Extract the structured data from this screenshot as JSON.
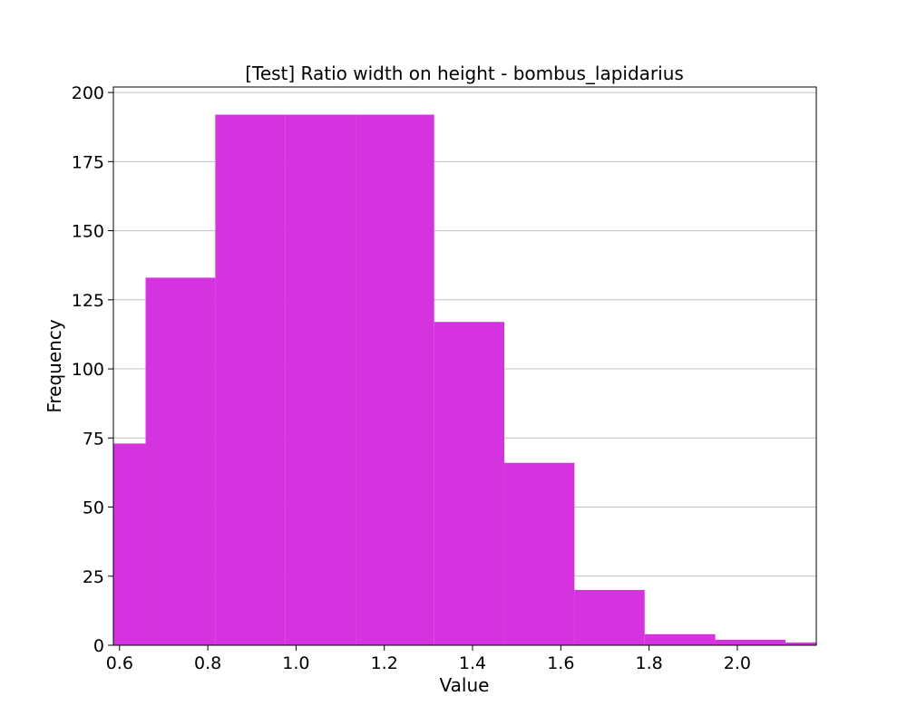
{
  "chart_data": {
    "type": "bar",
    "title": "[Test] Ratio width on height - bombus_lapidarius",
    "xlabel": "Value",
    "ylabel": "Frequency",
    "bins": [
      {
        "x0": 0.5,
        "x1": 0.659,
        "count": 73
      },
      {
        "x0": 0.659,
        "x1": 0.817,
        "count": 133
      },
      {
        "x0": 0.817,
        "x1": 0.976,
        "count": 192
      },
      {
        "x0": 0.976,
        "x1": 1.135,
        "count": 192
      },
      {
        "x0": 1.135,
        "x1": 1.313,
        "count": 192
      },
      {
        "x0": 1.313,
        "x1": 1.472,
        "count": 117
      },
      {
        "x0": 1.472,
        "x1": 1.631,
        "count": 66
      },
      {
        "x0": 1.631,
        "x1": 1.79,
        "count": 20
      },
      {
        "x0": 1.79,
        "x1": 1.95,
        "count": 4
      },
      {
        "x0": 1.95,
        "x1": 2.109,
        "count": 2
      },
      {
        "x0": 2.109,
        "x1": 2.268,
        "count": 1
      }
    ],
    "xlim": [
      0.586,
      2.179
    ],
    "ylim": [
      0,
      202
    ],
    "x_ticks": [
      0.6,
      0.8,
      1.0,
      1.2,
      1.4,
      1.6,
      1.8,
      2.0
    ],
    "x_tick_labels": [
      "0.6",
      "0.8",
      "1.0",
      "1.2",
      "1.4",
      "1.6",
      "1.8",
      "2.0"
    ],
    "y_ticks": [
      0,
      25,
      50,
      75,
      100,
      125,
      150,
      175,
      200
    ],
    "y_tick_labels": [
      "0",
      "25",
      "50",
      "75",
      "100",
      "125",
      "150",
      "175",
      "200"
    ],
    "grid": "y",
    "bar_color": "#d633e0",
    "grid_color": "#c0c0c0"
  }
}
